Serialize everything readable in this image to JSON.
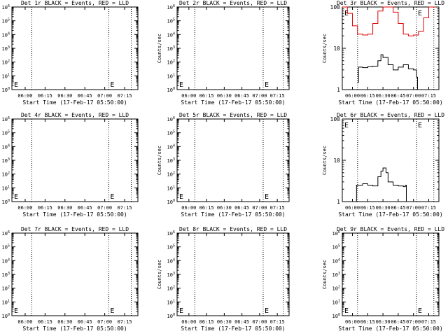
{
  "figure": {
    "common_xlabel": "Start Time (17-Feb-17 05:50:00)",
    "x_tick_labels": [
      "06:00",
      "06:15",
      "06:30",
      "06:45",
      "07:00",
      "07:15"
    ],
    "x_range": [
      "05:50",
      "07:25"
    ]
  },
  "chart_data": [
    {
      "type": "line",
      "panel": "det-1r",
      "title": "Det 1r BLACK = Events, RED = LLD",
      "xlabel": "Start Time (17-Feb-17 05:50:00)",
      "ylabel": "Counts/sec",
      "yscale": "log",
      "ylim": [
        1,
        1000000
      ],
      "y_tick_labels": [
        "10^0",
        "10^1",
        "10^2",
        "10^3",
        "10^4",
        "10^5",
        "10^6"
      ],
      "x_ticks": [
        "06:00",
        "06:15",
        "06:30",
        "06:45",
        "07:00",
        "07:15"
      ],
      "dotted_lines": [
        "06:05",
        "07:03",
        "07:20"
      ],
      "markers": [
        "E",
        "E"
      ],
      "series": []
    },
    {
      "type": "line",
      "panel": "det-2r",
      "title": "Det 2r BLACK = Events, RED = LLD",
      "xlabel": "Start Time (17-Feb-17 05:50:00)",
      "ylabel": "Counts/sec",
      "yscale": "log",
      "ylim": [
        1,
        1000000
      ],
      "y_tick_labels": [
        "10^0",
        "10^1",
        "10^2",
        "10^3",
        "10^4",
        "10^5",
        "10^6"
      ],
      "x_ticks": [
        "06:00",
        "06:15",
        "06:30",
        "06:45",
        "07:00",
        "07:15"
      ],
      "dotted_lines": [
        "06:05",
        "07:03",
        "07:20"
      ],
      "markers": [
        "E",
        "E"
      ],
      "series": []
    },
    {
      "type": "line",
      "panel": "det-3r",
      "title": "Det 3r BLACK = Events, RED = LLD",
      "xlabel": "Start Time (17-Feb-17 05:50:00)",
      "ylabel": "Counts/sec",
      "yscale": "log",
      "ylim": [
        1,
        100
      ],
      "y_tick_labels": [
        "1",
        "10",
        "100"
      ],
      "x_ticks": [
        "06:00",
        "06:15",
        "06:30",
        "06:45",
        "07:00",
        "07:15"
      ],
      "dotted_lines": [
        "06:05",
        "07:03",
        "07:20"
      ],
      "markers": [
        "E",
        "E"
      ],
      "series": [
        {
          "color": "#e00000",
          "x": [
            0,
            5,
            10,
            15,
            20,
            25,
            30,
            35,
            40,
            45,
            50,
            55,
            60,
            65,
            70,
            75,
            80,
            85,
            90,
            92
          ],
          "y": [
            100,
            70,
            35,
            22,
            21,
            22,
            40,
            80,
            100,
            100,
            75,
            40,
            22,
            20,
            21,
            26,
            55,
            100,
            100,
            100
          ]
        },
        {
          "color": "#000000",
          "x": [
            15,
            16,
            20,
            25,
            30,
            35,
            38,
            40,
            45,
            50,
            55,
            60,
            65,
            70,
            73,
            74
          ],
          "y": [
            1.5,
            3.5,
            3.4,
            3.6,
            3.7,
            5,
            7,
            6,
            4,
            3,
            3.5,
            4,
            3.2,
            3,
            2,
            1
          ]
        }
      ]
    },
    {
      "type": "line",
      "panel": "det-4r",
      "title": "Det 4r BLACK = Events, RED = LLD",
      "xlabel": "Start Time (17-Feb-17 05:50:00)",
      "ylabel": "Counts/sec",
      "yscale": "log",
      "ylim": [
        1,
        1000000
      ],
      "y_tick_labels": [
        "10^0",
        "10^1",
        "10^2",
        "10^3",
        "10^4",
        "10^5",
        "10^6"
      ],
      "x_ticks": [
        "06:00",
        "06:15",
        "06:30",
        "06:45",
        "07:00",
        "07:15"
      ],
      "dotted_lines": [
        "06:05",
        "07:03",
        "07:20"
      ],
      "markers": [
        "E",
        "E"
      ],
      "series": []
    },
    {
      "type": "line",
      "panel": "det-5r",
      "title": "Det 5r BLACK = Events, RED = LLD",
      "xlabel": "Start Time (17-Feb-17 05:50:00)",
      "ylabel": "Counts/sec",
      "yscale": "log",
      "ylim": [
        1,
        1000000
      ],
      "y_tick_labels": [
        "10^0",
        "10^1",
        "10^2",
        "10^3",
        "10^4",
        "10^5",
        "10^6"
      ],
      "x_ticks": [
        "06:00",
        "06:15",
        "06:30",
        "06:45",
        "07:00",
        "07:15"
      ],
      "dotted_lines": [
        "06:05",
        "07:03",
        "07:20"
      ],
      "markers": [
        "E",
        "E"
      ],
      "series": []
    },
    {
      "type": "line",
      "panel": "det-6r",
      "title": "Det 6r BLACK = Events, RED = LLD",
      "xlabel": "Start Time (17-Feb-17 05:50:00)",
      "ylabel": "Counts/sec",
      "yscale": "log",
      "ylim": [
        1,
        100
      ],
      "y_tick_labels": [
        "1",
        "10",
        "100"
      ],
      "x_ticks": [
        "06:00",
        "06:15",
        "06:30",
        "06:45",
        "07:00",
        "07:15"
      ],
      "dotted_lines": [
        "06:05",
        "07:03",
        "07:20"
      ],
      "markers": [
        "E",
        "E"
      ],
      "series": [
        {
          "color": "#000000",
          "x": [
            13,
            14,
            16,
            20,
            25,
            30,
            35,
            38,
            40,
            43,
            45,
            50,
            55,
            60,
            62,
            63
          ],
          "y": [
            1,
            2.5,
            2.5,
            2.7,
            2.5,
            2.4,
            4,
            5.5,
            6.5,
            5,
            3,
            2.5,
            2.4,
            2.3,
            2.5,
            1
          ]
        }
      ]
    },
    {
      "type": "line",
      "panel": "det-7r",
      "title": "Det 7r BLACK = Events, RED = LLD",
      "xlabel": "Start Time (17-Feb-17 05:50:00)",
      "ylabel": "Counts/sec",
      "yscale": "log",
      "ylim": [
        1,
        1000000
      ],
      "y_tick_labels": [
        "10^0",
        "10^1",
        "10^2",
        "10^3",
        "10^4",
        "10^5",
        "10^6"
      ],
      "x_ticks": [
        "06:00",
        "06:15",
        "06:30",
        "06:45",
        "07:00",
        "07:15"
      ],
      "dotted_lines": [
        "06:05",
        "07:03",
        "07:20"
      ],
      "markers": [
        "E",
        "E"
      ],
      "series": []
    },
    {
      "type": "line",
      "panel": "det-8r",
      "title": "Det 8r BLACK = Events, RED = LLD",
      "xlabel": "Start Time (17-Feb-17 05:50:00)",
      "ylabel": "Counts/sec",
      "yscale": "log",
      "ylim": [
        1,
        1000000
      ],
      "y_tick_labels": [
        "10^0",
        "10^1",
        "10^2",
        "10^3",
        "10^4",
        "10^5",
        "10^6"
      ],
      "x_ticks": [
        "06:00",
        "06:15",
        "06:30",
        "06:45",
        "07:00",
        "07:15"
      ],
      "dotted_lines": [
        "06:05",
        "07:03",
        "07:20"
      ],
      "markers": [
        "E",
        "E"
      ],
      "series": []
    },
    {
      "type": "line",
      "panel": "det-9r",
      "title": "Det 9r BLACK = Events, RED = LLD",
      "xlabel": "Start Time (17-Feb-17 05:50:00)",
      "ylabel": "Counts/sec",
      "yscale": "log",
      "ylim": [
        1,
        1000000
      ],
      "y_tick_labels": [
        "10^0",
        "10^1",
        "10^2",
        "10^3",
        "10^4",
        "10^5",
        "10^6"
      ],
      "x_ticks": [
        "06:00",
        "06:15",
        "06:30",
        "06:45",
        "07:00",
        "07:15"
      ],
      "dotted_lines": [
        "06:05",
        "07:03",
        "07:20"
      ],
      "markers": [
        "E",
        "E"
      ],
      "series": []
    }
  ]
}
